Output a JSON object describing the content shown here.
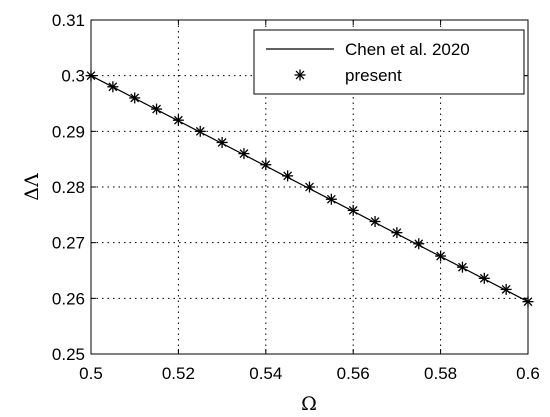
{
  "chart_data": {
    "type": "line",
    "xlabel": "Ω",
    "ylabel": "ΔΛ",
    "xlim": [
      0.5,
      0.6
    ],
    "ylim": [
      0.25,
      0.31
    ],
    "xticks": [
      "0.5",
      "0.52",
      "0.54",
      "0.56",
      "0.58",
      "0.6"
    ],
    "yticks": [
      "0.25",
      "0.26",
      "0.27",
      "0.28",
      "0.29",
      "0.3",
      "0.31"
    ],
    "grid": true,
    "legend_position": "top-right",
    "series": [
      {
        "name": "Chen et al. 2020",
        "style": "solid-line",
        "color": "#000000",
        "x": [
          0.5,
          0.6
        ],
        "y": [
          0.3,
          0.2594
        ]
      },
      {
        "name": "present",
        "style": "asterisk-markers",
        "color": "#000000",
        "x": [
          0.5,
          0.505,
          0.51,
          0.515,
          0.52,
          0.525,
          0.53,
          0.535,
          0.54,
          0.545,
          0.55,
          0.555,
          0.56,
          0.565,
          0.57,
          0.575,
          0.58,
          0.585,
          0.59,
          0.595,
          0.6
        ],
        "y": [
          0.3,
          0.298,
          0.296,
          0.294,
          0.292,
          0.29,
          0.288,
          0.286,
          0.284,
          0.282,
          0.28,
          0.2778,
          0.2758,
          0.2738,
          0.2718,
          0.2698,
          0.2676,
          0.2656,
          0.2636,
          0.2616,
          0.2594
        ]
      }
    ]
  }
}
